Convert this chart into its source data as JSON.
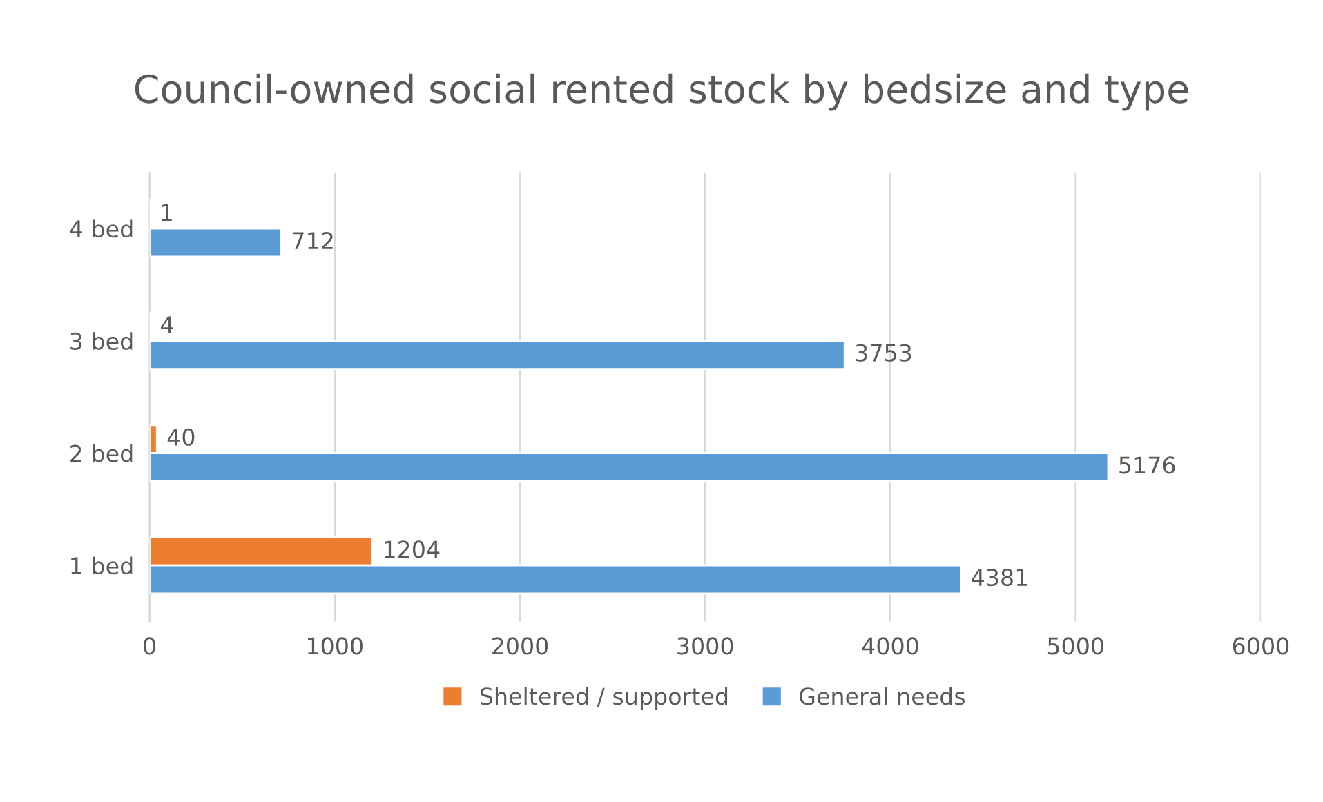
{
  "chart_data": {
    "type": "bar",
    "orientation": "horizontal",
    "title": "Council-owned social rented stock by bedsize and type",
    "categories": [
      "4 bed",
      "3 bed",
      "2 bed",
      "1 bed"
    ],
    "series": [
      {
        "name": "Sheltered / supported",
        "color": "#ed7d31",
        "values": [
          1,
          4,
          40,
          1204
        ]
      },
      {
        "name": "General needs",
        "color": "#5b9bd5",
        "values": [
          712,
          3753,
          5176,
          4381
        ]
      }
    ],
    "xlim": [
      0,
      6000
    ],
    "xticks": [
      0,
      1000,
      2000,
      3000,
      4000,
      5000,
      6000
    ],
    "grid": "x",
    "legend": "bottom",
    "data_labels": true
  }
}
